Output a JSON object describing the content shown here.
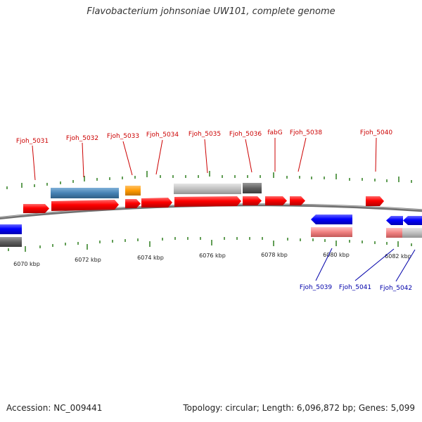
{
  "title": "Flavobacterium johnsoniae UW101, complete genome",
  "footer": {
    "accession": "Accession: NC_009441",
    "summary": "Topology: circular; Length: 6,096,872 bp; Genes: 5,099"
  },
  "colors": {
    "forward_gene": "#ff0000",
    "reverse_gene": "#0000ff",
    "forward_label": "#cc0000",
    "reverse_label": "#0000aa",
    "backbone": "#707070",
    "tick": "#2e7d1e",
    "feature_steelblue": "#4682b4",
    "feature_orange": "#ff9900",
    "feature_lightgray": "#c0c0c0",
    "feature_darkgray": "#606060",
    "feature_pink": "#f08080"
  },
  "axis_labels": [
    "6070 kbp",
    "6072 kbp",
    "6074 kbp",
    "6076 kbp",
    "6078 kbp",
    "6080 kbp",
    "6082 kbp"
  ],
  "forward_gene_labels": [
    "Fjoh_5031",
    "Fjoh_5032",
    "Fjoh_5033",
    "Fjoh_5034",
    "Fjoh_5035",
    "Fjoh_5036",
    "fabG",
    "Fjoh_5038",
    "Fjoh_5040"
  ],
  "reverse_gene_labels": [
    "Fjoh_5039",
    "Fjoh_5041",
    "Fjoh_5042"
  ]
}
